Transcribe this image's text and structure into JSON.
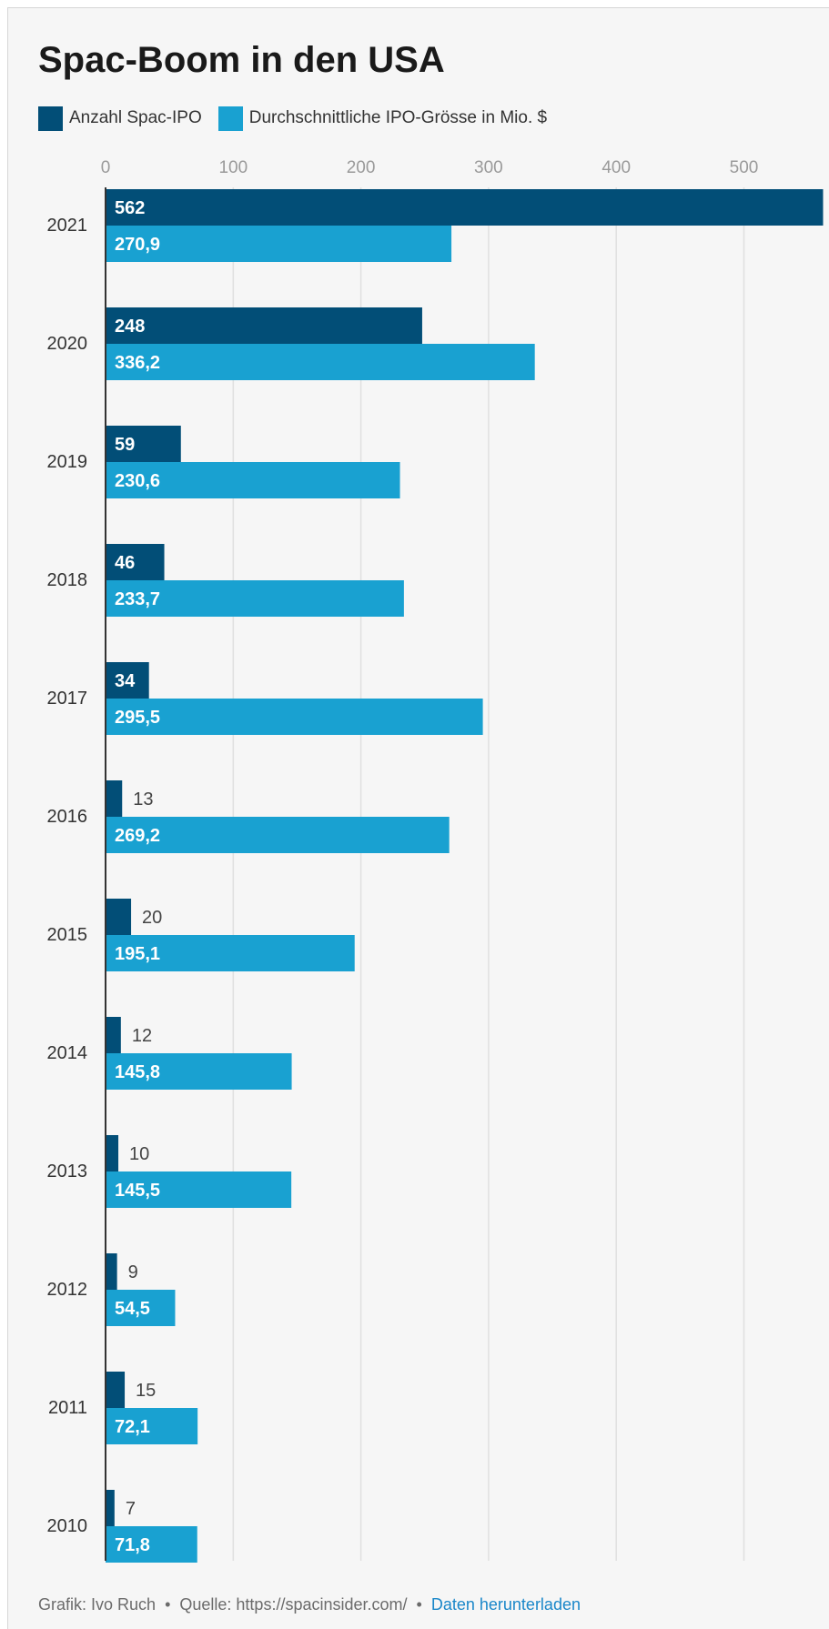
{
  "chart_data": {
    "type": "bar",
    "orientation": "horizontal",
    "title": "Spac-Boom in den USA",
    "categories": [
      "2021",
      "2020",
      "2019",
      "2018",
      "2017",
      "2016",
      "2015",
      "2014",
      "2013",
      "2012",
      "2011",
      "2010"
    ],
    "series": [
      {
        "name": "Anzahl Spac-IPO",
        "color": "#024e77",
        "values": [
          562,
          248,
          59,
          46,
          34,
          13,
          20,
          12,
          10,
          9,
          15,
          7
        ],
        "labels": [
          "562",
          "248",
          "59",
          "46",
          "34",
          "13",
          "20",
          "12",
          "10",
          "9",
          "15",
          "7"
        ]
      },
      {
        "name": "Durchschnittliche IPO-Grösse in Mio. $",
        "color": "#19a1d1",
        "values": [
          270.9,
          336.2,
          230.6,
          233.7,
          295.5,
          269.2,
          195.1,
          145.8,
          145.5,
          54.5,
          72.1,
          71.8
        ],
        "labels": [
          "270,9",
          "336,2",
          "230,6",
          "233,7",
          "295,5",
          "269,2",
          "195,1",
          "145,8",
          "145,5",
          "54,5",
          "72,1",
          "71,8"
        ]
      }
    ],
    "x_ticks": [
      0,
      100,
      200,
      300,
      400,
      500
    ],
    "x_tick_labels": [
      "0",
      "100",
      "200",
      "300",
      "400",
      "500"
    ],
    "xlim": [
      0,
      562
    ],
    "axis_position": "top",
    "grid": true,
    "legend_position": "top-left"
  },
  "footer": {
    "credit": "Grafik: Ivo Ruch",
    "separator": "•",
    "source": "Quelle: https://spacinsider.com/",
    "download_link": "Daten herunterladen"
  }
}
